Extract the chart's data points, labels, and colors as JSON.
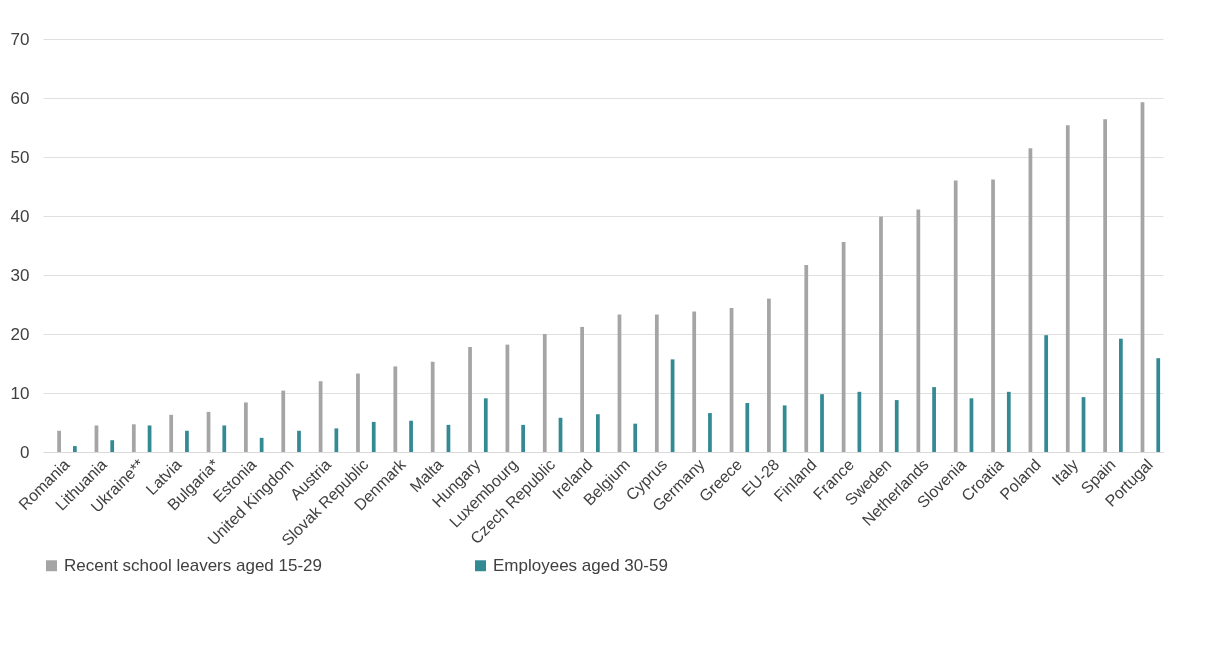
{
  "chart_data": {
    "type": "bar",
    "categories": [
      "Romania",
      "Lithuania",
      "Ukraine**",
      "Latvia",
      "Bulgaria*",
      "Estonia",
      "United Kingdom",
      "Austria",
      "Slovak Republic",
      "Denmark",
      "Malta",
      "Hungary",
      "Luxembourg",
      "Czech Republic",
      "Ireland",
      "Belgium",
      "Cyprus",
      "Germany",
      "Greece",
      "EU-28",
      "Finland",
      "France",
      "Sweden",
      "Netherlands",
      "Slovenia",
      "Croatia",
      "Poland",
      "Italy",
      "Spain",
      "Portugal"
    ],
    "series": [
      {
        "name": "Recent school leavers aged 15-29",
        "color": "#a5a5a5",
        "values": [
          3.6,
          4.5,
          4.7,
          6.3,
          6.8,
          8.4,
          10.4,
          12.0,
          13.3,
          14.5,
          15.3,
          17.8,
          18.2,
          20.0,
          21.2,
          23.3,
          23.3,
          23.8,
          24.4,
          26.0,
          31.7,
          35.6,
          39.9,
          41.1,
          46.0,
          46.2,
          51.5,
          55.4,
          56.4,
          59.3
        ]
      },
      {
        "name": "Employees aged 30-59",
        "color": "#348a93",
        "values": [
          1.0,
          2.0,
          4.5,
          3.6,
          4.5,
          2.4,
          3.6,
          4.0,
          5.1,
          5.3,
          4.6,
          9.1,
          4.6,
          5.8,
          6.4,
          4.8,
          15.7,
          6.6,
          8.3,
          7.9,
          9.8,
          10.2,
          8.8,
          11.0,
          9.1,
          10.2,
          19.8,
          9.3,
          19.2,
          15.9
        ]
      }
    ],
    "ylim": [
      0,
      70
    ],
    "yticks": [
      0,
      10,
      20,
      30,
      40,
      50,
      60,
      70
    ],
    "grid": "y",
    "legend": "bottom"
  }
}
